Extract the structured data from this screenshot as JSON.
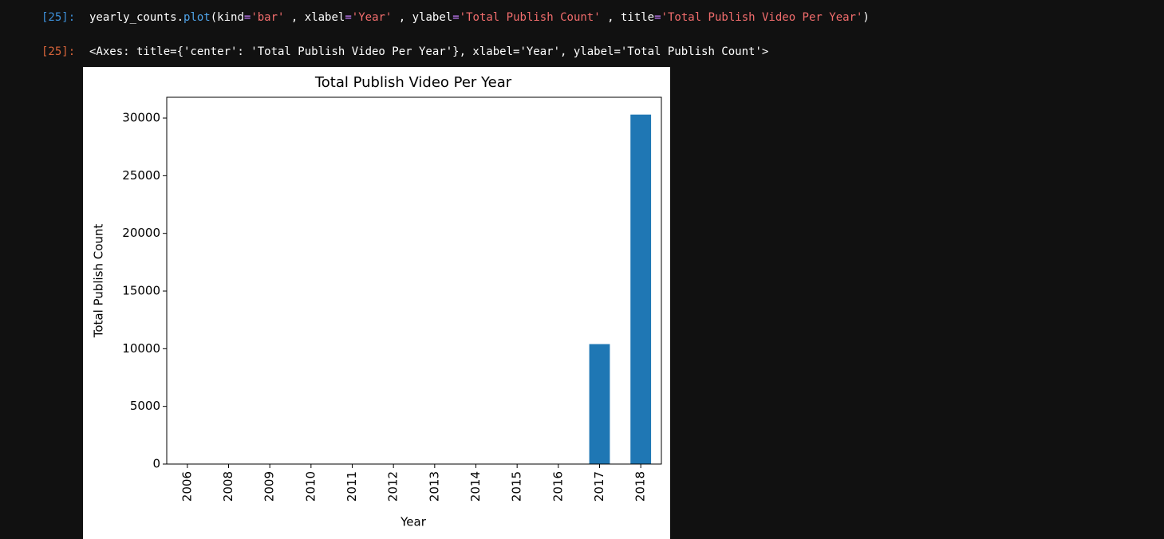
{
  "input_prompt": "[25]:",
  "code_tokens": [
    {
      "text": "yearly_counts.",
      "color": "#ffffff"
    },
    {
      "text": "plot",
      "color": "#4fa3e8"
    },
    {
      "text": "(kind",
      "color": "#ffffff"
    },
    {
      "text": "=",
      "color": "#c77dff"
    },
    {
      "text": "'bar'",
      "color": "#f26d6d"
    },
    {
      "text": " , xlabel",
      "color": "#ffffff"
    },
    {
      "text": "=",
      "color": "#c77dff"
    },
    {
      "text": "'Year'",
      "color": "#f26d6d"
    },
    {
      "text": " , ylabel",
      "color": "#ffffff"
    },
    {
      "text": "=",
      "color": "#c77dff"
    },
    {
      "text": "'Total Publish Count'",
      "color": "#f26d6d"
    },
    {
      "text": " , title",
      "color": "#ffffff"
    },
    {
      "text": "=",
      "color": "#c77dff"
    },
    {
      "text": "'Total Publish Video Per Year'",
      "color": "#f26d6d"
    },
    {
      "text": ")",
      "color": "#ffffff"
    }
  ],
  "output_prompt": "[25]:",
  "output_text": "<Axes: title={'center': 'Total Publish Video Per Year'}, xlabel='Year', ylabel='Total Publish Count'>",
  "chart_data": {
    "type": "bar",
    "title": "Total Publish Video Per Year",
    "x_label": "Year",
    "y_label": "Total Publish Count",
    "categories": [
      "2006",
      "2008",
      "2009",
      "2010",
      "2011",
      "2012",
      "2013",
      "2014",
      "2015",
      "2016",
      "2017",
      "2018"
    ],
    "values": [
      0,
      0,
      0,
      0,
      0,
      0,
      0,
      0,
      0,
      0,
      10400,
      30300
    ],
    "color": "#1f77b4",
    "ylim": [
      0,
      31800
    ],
    "yticks": [
      0,
      5000,
      10000,
      15000,
      20000,
      25000,
      30000
    ],
    "grid": false
  }
}
